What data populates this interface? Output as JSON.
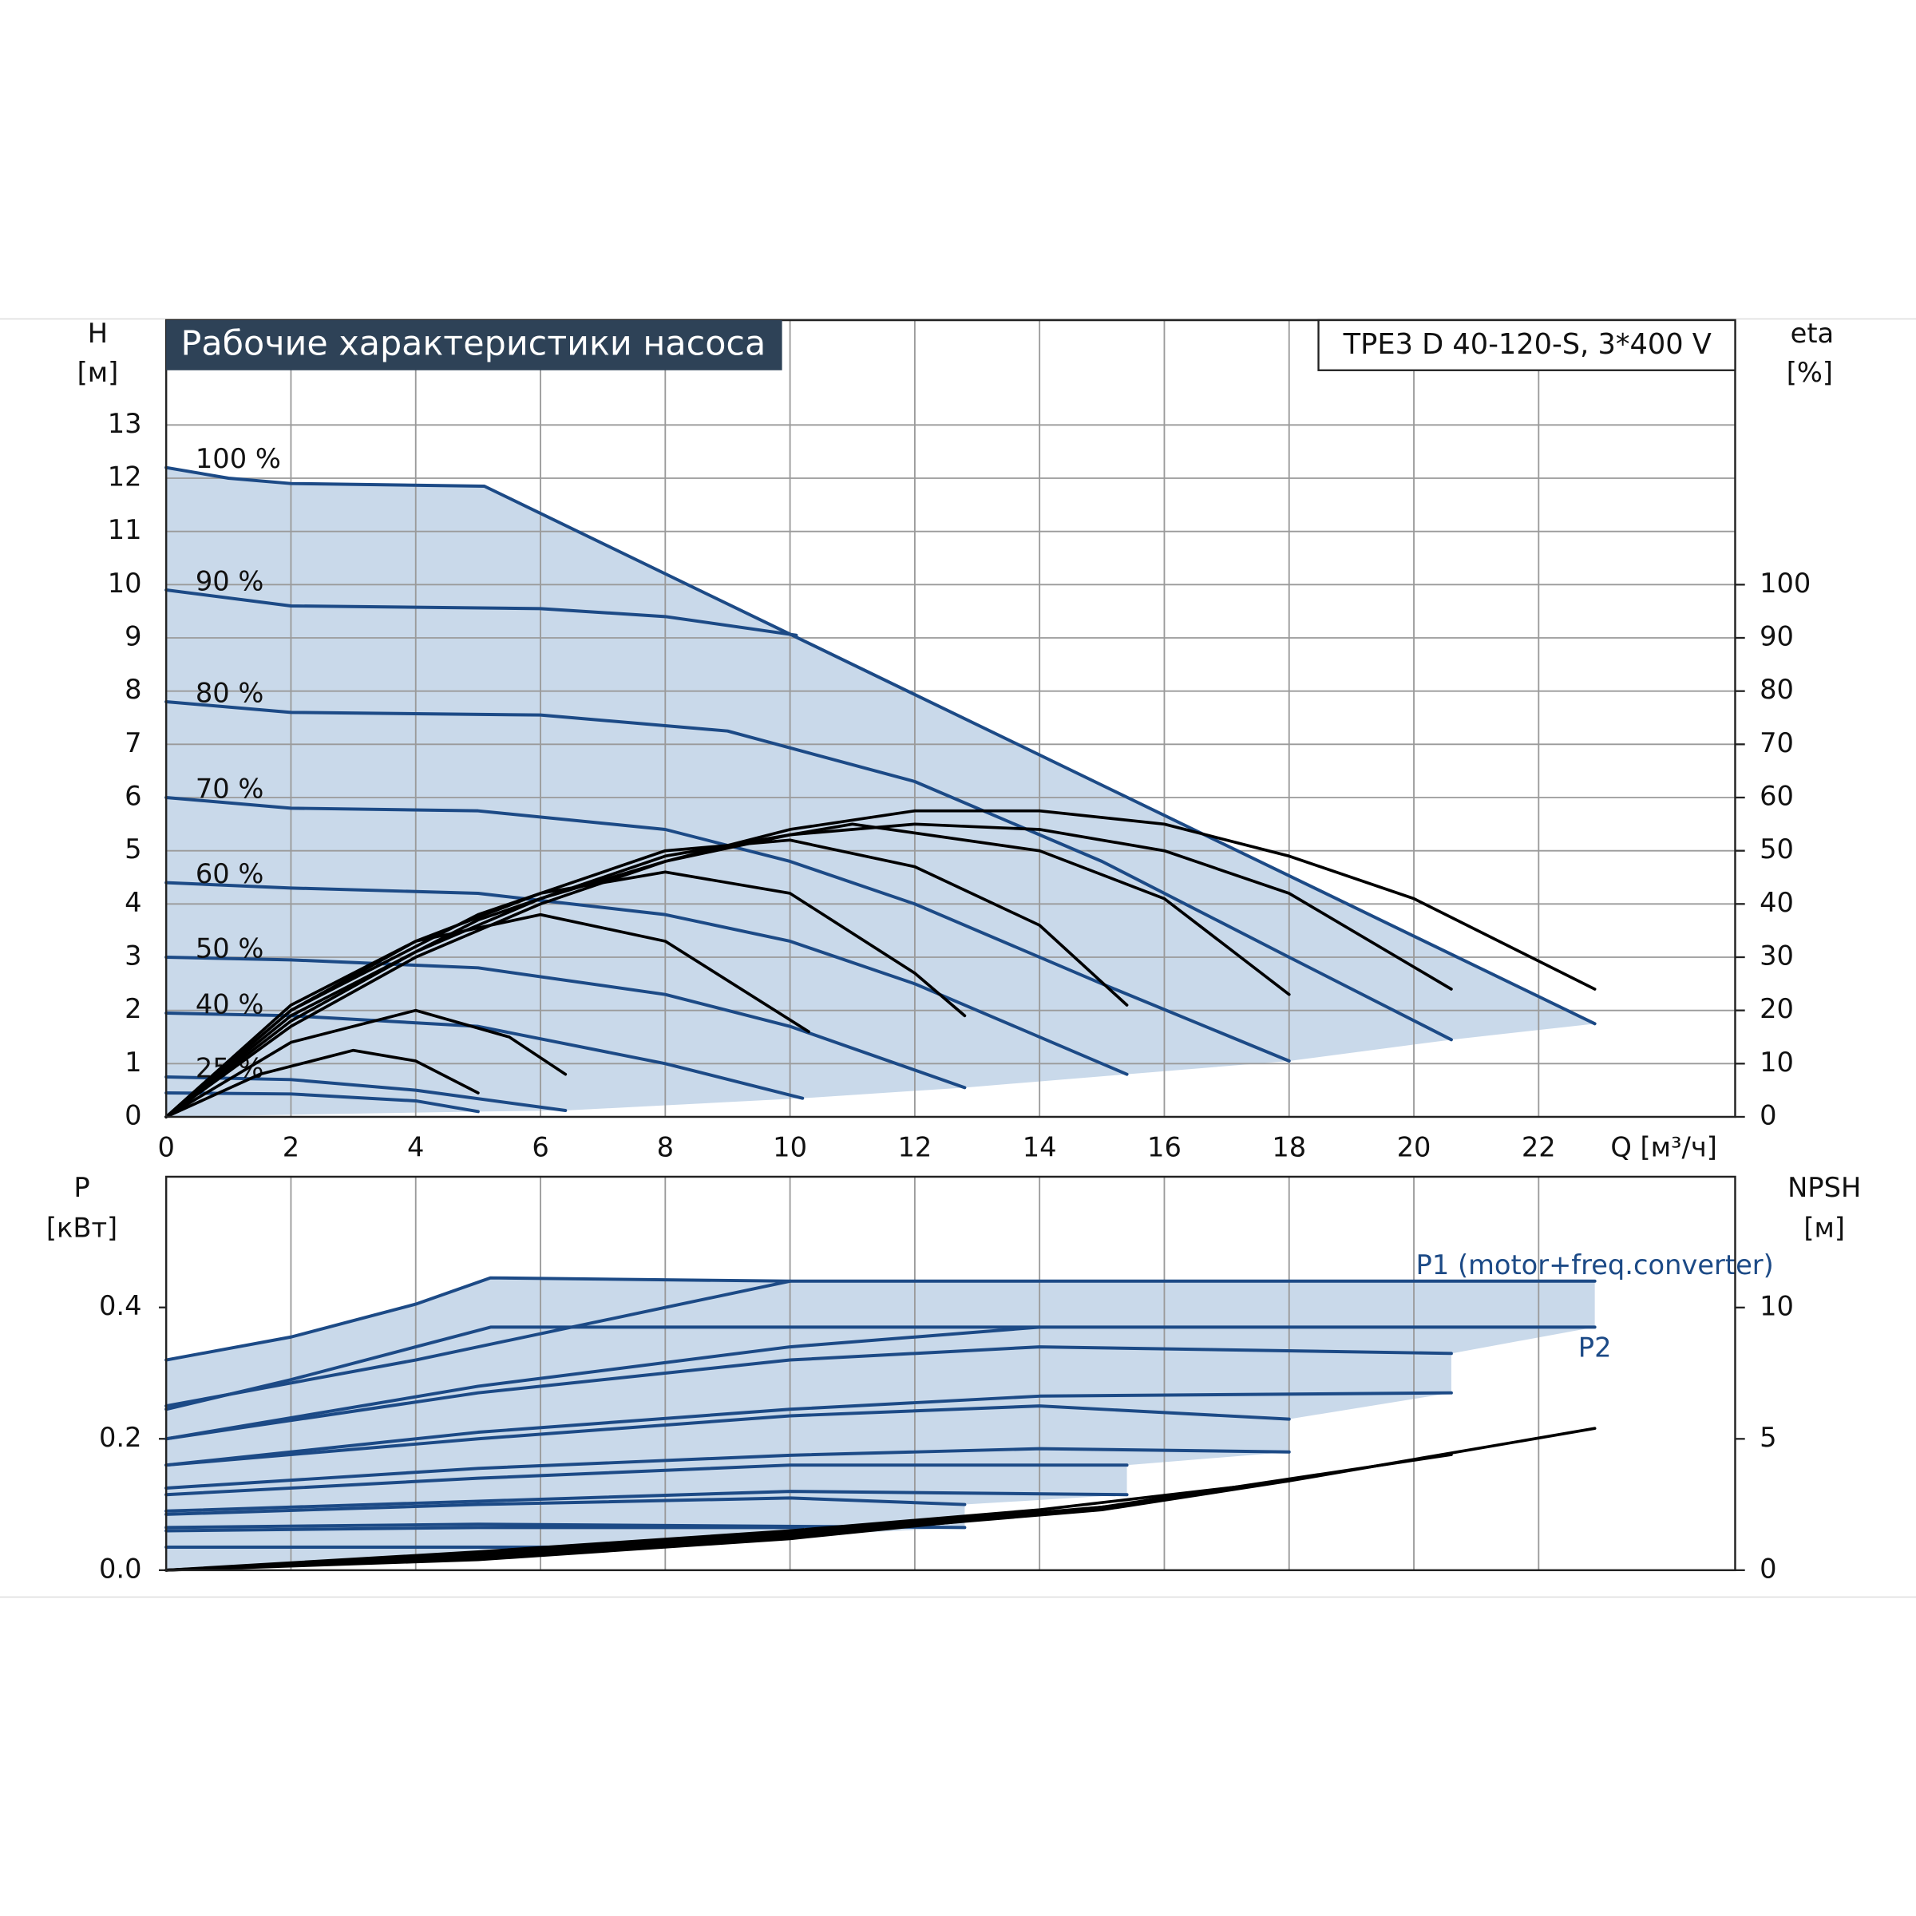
{
  "chart_data": [
    {
      "type": "line",
      "title": "Рабочие характеристики насоса",
      "subtitle": "TPE3 D 40-120-S, 3*400 V",
      "ylabel": "H",
      "ylabel_unit": "[м]",
      "y2label": "eta",
      "y2label_unit": "[%]",
      "xlabel": "Q [м³/ч]",
      "xlim": [
        0,
        25.15
      ],
      "ylim": [
        0,
        14.97
      ],
      "y2lim": [
        0,
        149.7
      ],
      "grid": true,
      "xticks": [
        0,
        2,
        4,
        6,
        8,
        10,
        12,
        14,
        16,
        18,
        20,
        22
      ],
      "yticks": [
        0,
        1,
        2,
        3,
        4,
        5,
        6,
        7,
        8,
        9,
        10,
        11,
        12,
        13
      ],
      "y2ticks": [
        0,
        10,
        20,
        30,
        40,
        50,
        60,
        70,
        80,
        90,
        100
      ],
      "series": [
        {
          "name": "100 %",
          "color": "#1c4a86",
          "x": [
            0,
            1,
            2,
            5.1,
            22.9
          ],
          "values": [
            12.2,
            12.0,
            11.9,
            11.85,
            1.75
          ]
        },
        {
          "name": "90 %",
          "color": "#1c4a86",
          "x": [
            0,
            2,
            6,
            8,
            10.1
          ],
          "values": [
            9.9,
            9.6,
            9.55,
            9.4,
            9.05
          ]
        },
        {
          "name": "80 %",
          "color": "#1c4a86",
          "x": [
            0,
            2,
            6,
            9,
            12,
            15,
            18,
            20.6
          ],
          "values": [
            7.8,
            7.6,
            7.55,
            7.25,
            6.3,
            4.8,
            3.0,
            1.45
          ]
        },
        {
          "name": "70 %",
          "color": "#1c4a86",
          "x": [
            0,
            2,
            5,
            8,
            10,
            12,
            15,
            18
          ],
          "values": [
            6.0,
            5.8,
            5.75,
            5.4,
            4.8,
            4.0,
            2.5,
            1.05
          ]
        },
        {
          "name": "60 %",
          "color": "#1c4a86",
          "x": [
            0,
            2,
            5,
            8,
            10,
            12,
            15.4
          ],
          "values": [
            4.4,
            4.3,
            4.2,
            3.8,
            3.3,
            2.5,
            0.8
          ]
        },
        {
          "name": "50 %",
          "color": "#1c4a86",
          "x": [
            0,
            2,
            5,
            8,
            10,
            12.8
          ],
          "values": [
            3.0,
            2.95,
            2.8,
            2.3,
            1.7,
            0.55
          ]
        },
        {
          "name": "40 %",
          "color": "#1c4a86",
          "x": [
            0,
            2,
            5,
            8,
            10.2
          ],
          "values": [
            1.95,
            1.9,
            1.7,
            1.0,
            0.35
          ]
        },
        {
          "name": "25 %",
          "color": "#1c4a86",
          "x": [
            0,
            2,
            4,
            6.4
          ],
          "values": [
            0.75,
            0.7,
            0.5,
            0.12
          ]
        },
        {
          "color": "#1c4a86",
          "x": [
            0,
            2,
            4,
            5
          ],
          "values": [
            0.45,
            0.43,
            0.3,
            0.1
          ]
        },
        {
          "color": "#000000",
          "axis": "y2",
          "x": [
            0,
            2,
            4,
            6,
            8,
            10,
            12,
            14,
            16,
            18,
            20,
            22.9
          ],
          "values": [
            0,
            17,
            30,
            40,
            48,
            54,
            57.5,
            57.5,
            55,
            49,
            41,
            24
          ]
        },
        {
          "color": "#000000",
          "axis": "y2",
          "x": [
            0,
            2,
            4,
            6,
            8,
            10,
            12,
            14,
            16,
            18,
            20.6
          ],
          "values": [
            0,
            18,
            31,
            41,
            48,
            53,
            55,
            54,
            50,
            42,
            24
          ]
        },
        {
          "color": "#000000",
          "axis": "y2",
          "x": [
            0,
            2,
            5,
            8,
            11,
            14,
            16,
            18
          ],
          "values": [
            0,
            19,
            37,
            49,
            55,
            50,
            41,
            23
          ]
        },
        {
          "color": "#000000",
          "axis": "y2",
          "x": [
            0,
            2,
            5,
            8,
            10,
            12,
            14,
            15.4
          ],
          "values": [
            0,
            20,
            38,
            50,
            52,
            47,
            36,
            21
          ]
        },
        {
          "color": "#000000",
          "axis": "y2",
          "x": [
            0,
            2,
            4,
            6,
            8,
            10,
            12,
            12.8
          ],
          "values": [
            0,
            20,
            33,
            42,
            46,
            42,
            27,
            19
          ]
        },
        {
          "color": "#000000",
          "axis": "y2",
          "x": [
            0,
            2,
            4,
            6,
            8,
            10.3
          ],
          "values": [
            0,
            21,
            33,
            38,
            33,
            16
          ]
        },
        {
          "color": "#000000",
          "axis": "y2",
          "x": [
            0,
            2,
            4,
            5.5,
            6.4
          ],
          "values": [
            0,
            14,
            20,
            15,
            8
          ]
        },
        {
          "color": "#000000",
          "axis": "y2",
          "x": [
            0,
            1.5,
            3,
            4,
            5
          ],
          "values": [
            0,
            8,
            12.5,
            10.5,
            4.5
          ]
        }
      ]
    },
    {
      "type": "line",
      "ylabel": "P",
      "ylabel_unit": "[кВт]",
      "y2label": "NPSH",
      "y2label_unit": "[м]",
      "xlim": [
        0,
        25.15
      ],
      "ylim": [
        0,
        0.599
      ],
      "y2lim": [
        0,
        14.98
      ],
      "grid": "x",
      "yticks": [
        {
          "value": 0,
          "label": "0.0"
        },
        0.2,
        0.4
      ],
      "y2ticks": [
        0,
        5,
        10
      ],
      "series": [
        {
          "name": "P1 (motor+freq.converter)",
          "color": "#1c4a86",
          "x": [
            0,
            2,
            4,
            5.2,
            10,
            22.9
          ],
          "values": [
            0.32,
            0.355,
            0.405,
            0.445,
            0.44,
            0.44
          ]
        },
        {
          "name": "P2",
          "color": "#1c4a86",
          "x": [
            0,
            2,
            4,
            5.2,
            22.9
          ],
          "values": [
            0.245,
            0.29,
            0.34,
            0.37,
            0.37
          ]
        },
        {
          "color": "#1c4a86",
          "x": [
            0,
            4,
            8,
            10
          ],
          "values": [
            0.25,
            0.32,
            0.4,
            0.44
          ]
        },
        {
          "color": "#1c4a86",
          "x": [
            0,
            5,
            10,
            14
          ],
          "values": [
            0.2,
            0.28,
            0.34,
            0.37
          ]
        },
        {
          "color": "#1c4a86",
          "x": [
            0,
            5,
            10,
            14,
            20.6
          ],
          "values": [
            0.2,
            0.27,
            0.32,
            0.34,
            0.33
          ]
        },
        {
          "color": "#1c4a86",
          "x": [
            0,
            5,
            10,
            14,
            20.6
          ],
          "values": [
            0.16,
            0.21,
            0.245,
            0.265,
            0.27
          ]
        },
        {
          "color": "#1c4a86",
          "x": [
            0,
            5,
            10,
            14,
            18
          ],
          "values": [
            0.16,
            0.2,
            0.235,
            0.25,
            0.23
          ]
        },
        {
          "color": "#1c4a86",
          "x": [
            0,
            5,
            10,
            14,
            18
          ],
          "values": [
            0.125,
            0.155,
            0.175,
            0.185,
            0.18
          ]
        },
        {
          "color": "#1c4a86",
          "x": [
            0,
            5,
            10,
            15.4
          ],
          "values": [
            0.115,
            0.14,
            0.16,
            0.16
          ]
        },
        {
          "color": "#1c4a86",
          "x": [
            0,
            5,
            10,
            15.4
          ],
          "values": [
            0.09,
            0.105,
            0.12,
            0.115
          ]
        },
        {
          "color": "#1c4a86",
          "x": [
            0,
            5,
            10,
            12.8
          ],
          "values": [
            0.085,
            0.1,
            0.11,
            0.1
          ]
        },
        {
          "color": "#1c4a86",
          "x": [
            0,
            5,
            12.8
          ],
          "values": [
            0.065,
            0.07,
            0.065
          ]
        },
        {
          "color": "#1c4a86",
          "x": [
            0,
            5,
            10.2
          ],
          "values": [
            0.06,
            0.065,
            0.065
          ]
        },
        {
          "color": "#1c4a86",
          "x": [
            0,
            6.4
          ],
          "values": [
            0.035,
            0.035
          ]
        },
        {
          "color": "#000000",
          "axis": "y2",
          "x": [
            0,
            5,
            10,
            14,
            18,
            22.9
          ],
          "values": [
            0,
            0.7,
            1.5,
            2.3,
            3.4,
            5.4
          ]
        },
        {
          "color": "#000000",
          "axis": "y2",
          "x": [
            0,
            5,
            10,
            15,
            20.6
          ],
          "values": [
            0,
            0.6,
            1.4,
            2.4,
            4.4
          ]
        },
        {
          "color": "#000000",
          "axis": "y2",
          "x": [
            0,
            5,
            10,
            15,
            18
          ],
          "values": [
            0,
            0.5,
            1.3,
            2.3,
            3.4
          ]
        },
        {
          "color": "#000000",
          "axis": "y2",
          "x": [
            0,
            5,
            10,
            15.4
          ],
          "values": [
            0,
            0.4,
            1.2,
            2.5
          ]
        }
      ]
    }
  ]
}
